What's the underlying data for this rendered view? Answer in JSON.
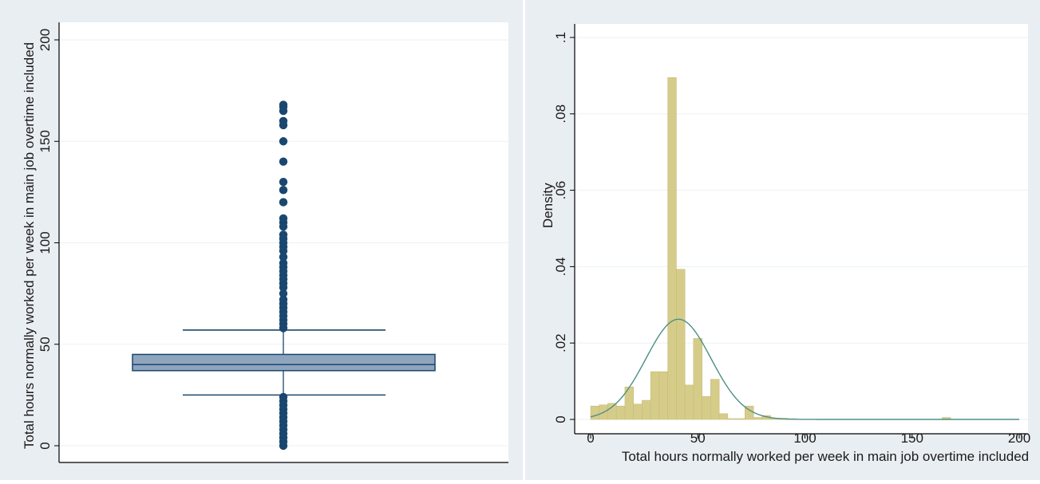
{
  "chart_data": [
    {
      "type": "box",
      "ylabel": "Total hours normally worked per week in main job overtime included",
      "ylim": [
        0,
        210
      ],
      "yticks": [
        0,
        50,
        100,
        150,
        200
      ],
      "grid": true,
      "box": {
        "whisker_low": 25,
        "q1": 37,
        "median": 40,
        "q3": 45,
        "whisker_high": 57
      },
      "outliers": [
        0,
        2,
        4,
        6,
        8,
        10,
        12,
        14,
        16,
        18,
        20,
        22,
        24,
        58,
        60,
        62,
        64,
        66,
        68,
        70,
        72,
        75,
        78,
        80,
        82,
        84,
        86,
        88,
        90,
        93,
        96,
        98,
        100,
        102,
        104,
        108,
        110,
        112,
        120,
        126,
        130,
        140,
        150,
        158,
        160,
        165,
        167,
        168
      ],
      "colors": {
        "box_fill": "#8fa5bd",
        "box_stroke": "#1a476f",
        "outlier": "#1a476f",
        "plot_bg": "#ffffff",
        "outer_bg": "#e9eef3",
        "grid": "#eaf2f3"
      }
    },
    {
      "type": "histogram",
      "xlabel": "Total hours normally worked per week in main job overtime included",
      "ylabel": "Density",
      "xlim": [
        0,
        200
      ],
      "ylim": [
        0,
        0.1
      ],
      "xticks": [
        0,
        50,
        100,
        150,
        200
      ],
      "yticks": [
        0,
        0.02,
        0.04,
        0.06,
        0.08,
        0.1
      ],
      "ytick_labels": [
        "0",
        ".02",
        ".04",
        ".06",
        ".08",
        ".1"
      ],
      "grid": true,
      "bin_width": 4,
      "bins": [
        {
          "x0": 0,
          "x1": 4,
          "density": 0.0035
        },
        {
          "x0": 4,
          "x1": 8,
          "density": 0.0038
        },
        {
          "x0": 8,
          "x1": 12,
          "density": 0.0042
        },
        {
          "x0": 12,
          "x1": 16,
          "density": 0.0035
        },
        {
          "x0": 16,
          "x1": 20,
          "density": 0.0085
        },
        {
          "x0": 20,
          "x1": 24,
          "density": 0.004
        },
        {
          "x0": 24,
          "x1": 28,
          "density": 0.005
        },
        {
          "x0": 28,
          "x1": 32,
          "density": 0.0125
        },
        {
          "x0": 32,
          "x1": 36,
          "density": 0.0125
        },
        {
          "x0": 36,
          "x1": 40,
          "density": 0.0895
        },
        {
          "x0": 40,
          "x1": 44,
          "density": 0.0393
        },
        {
          "x0": 44,
          "x1": 48,
          "density": 0.009
        },
        {
          "x0": 48,
          "x1": 52,
          "density": 0.0212
        },
        {
          "x0": 52,
          "x1": 56,
          "density": 0.006
        },
        {
          "x0": 56,
          "x1": 60,
          "density": 0.0105
        },
        {
          "x0": 60,
          "x1": 64,
          "density": 0.0015
        },
        {
          "x0": 64,
          "x1": 68,
          "density": 0.0002
        },
        {
          "x0": 68,
          "x1": 72,
          "density": 0.0002
        },
        {
          "x0": 72,
          "x1": 76,
          "density": 0.0035
        },
        {
          "x0": 76,
          "x1": 80,
          "density": 0.0005
        },
        {
          "x0": 80,
          "x1": 84,
          "density": 0.001
        },
        {
          "x0": 84,
          "x1": 88,
          "density": 0.0003
        },
        {
          "x0": 88,
          "x1": 92,
          "density": 0.0003
        },
        {
          "x0": 92,
          "x1": 96,
          "density": 0.0002
        },
        {
          "x0": 164,
          "x1": 168,
          "density": 0.0005
        }
      ],
      "normal_curve": {
        "mean": 41,
        "sd": 15.2
      },
      "colors": {
        "bar_fill": "#d6cc8a",
        "bar_stroke": "#c8bc74",
        "curve": "#4e8f85",
        "plot_bg": "#ffffff",
        "outer_bg": "#e9eef3",
        "grid": "#eaf2f3"
      }
    }
  ]
}
